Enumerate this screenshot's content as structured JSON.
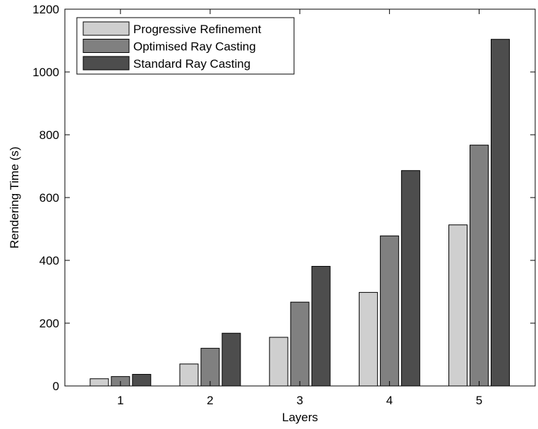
{
  "chart_data": {
    "type": "bar",
    "title": "",
    "xlabel": "Layers",
    "ylabel": "Rendering Time (s)",
    "categories": [
      "1",
      "2",
      "3",
      "4",
      "5"
    ],
    "ylim": [
      0,
      1200
    ],
    "yticks": [
      "0",
      "200",
      "400",
      "600",
      "800",
      "1000",
      "1200"
    ],
    "grid": false,
    "legend_position": "top-left",
    "series": [
      {
        "name": "Progressive Refinement",
        "color": "#cfcfcf",
        "values": [
          23,
          70,
          155,
          298,
          513
        ]
      },
      {
        "name": "Optimised Ray Casting",
        "color": "#808080",
        "values": [
          30,
          120,
          267,
          478,
          767
        ]
      },
      {
        "name": "Standard Ray Casting",
        "color": "#4d4d4d",
        "values": [
          37,
          168,
          381,
          686,
          1104
        ]
      }
    ]
  }
}
